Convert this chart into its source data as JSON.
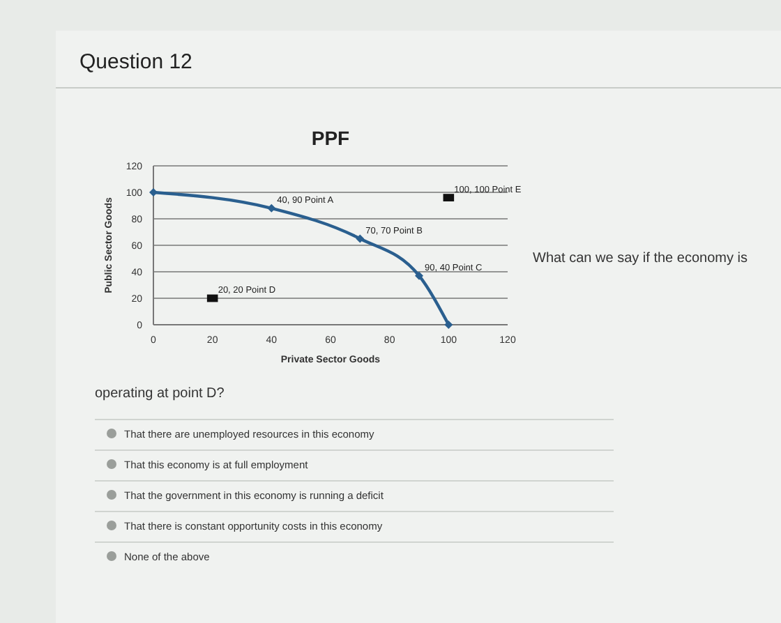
{
  "chart_data": {
    "type": "line",
    "title": "PPF",
    "xlabel": "Private Sector Goods",
    "ylabel": "Public Sector Goods",
    "xlim": [
      0,
      120
    ],
    "xticks": [
      0,
      20,
      40,
      60,
      80,
      100,
      120
    ],
    "ylim": [
      0,
      120
    ],
    "yticks": [
      0,
      20,
      40,
      60,
      80,
      100,
      120
    ],
    "grid": "y",
    "marker": "diamond",
    "series": [
      {
        "color": "#2a5f8f",
        "x": [
          0,
          40,
          70,
          90,
          100
        ],
        "values": [
          100,
          88,
          65,
          37,
          0
        ]
      },
      {
        "type": "scatter",
        "marker": "square",
        "color": "#111111",
        "x": [
          20,
          100
        ],
        "values": [
          20,
          96
        ]
      }
    ],
    "annotations": [
      "Question 12",
      "What can we say if the economy is",
      "operating at point D?",
      "That there are unemployed resources in this economy",
      "That this economy is at full employment",
      "That the government in this economy is running a deficit",
      "That there is constant opportunity costs in this economy",
      "None of the above",
      {
        "text": "40, 90 Point A",
        "x": 40,
        "y": 88
      },
      {
        "text": "70, 70 Point B",
        "x": 70,
        "y": 65
      },
      {
        "text": "90, 40 Point C",
        "x": 90,
        "y": 37
      },
      {
        "text": "20, 20 Point D",
        "x": 20,
        "y": 20
      },
      {
        "text": "100, 100 Point E",
        "x": 100,
        "y": 96
      }
    ]
  }
}
